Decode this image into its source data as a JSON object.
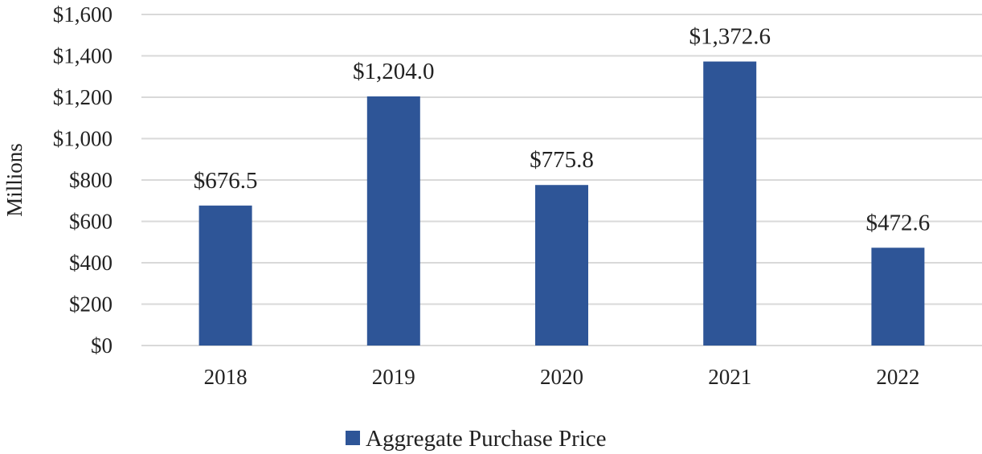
{
  "chart_data": {
    "type": "bar",
    "categories": [
      "2018",
      "2019",
      "2020",
      "2021",
      "2022"
    ],
    "series": [
      {
        "name": "Aggregate Purchase Price",
        "values": [
          676.5,
          1204.0,
          775.8,
          1372.6,
          472.6
        ],
        "data_labels": [
          "$676.5",
          "$1,204.0",
          "$775.8",
          "$1,372.6",
          "$472.6"
        ],
        "color": "#2e5597"
      }
    ],
    "title": "",
    "xlabel": "",
    "ylabel": "Millions",
    "ylim": [
      0,
      1600
    ],
    "yticks": [
      0,
      200,
      400,
      600,
      800,
      1000,
      1200,
      1400,
      1600
    ],
    "ytick_labels": [
      "$0",
      "$200",
      "$400",
      "$600",
      "$800",
      "$1,000",
      "$1,200",
      "$1,400",
      "$1,600"
    ],
    "grid": true,
    "legend_position": "bottom"
  }
}
